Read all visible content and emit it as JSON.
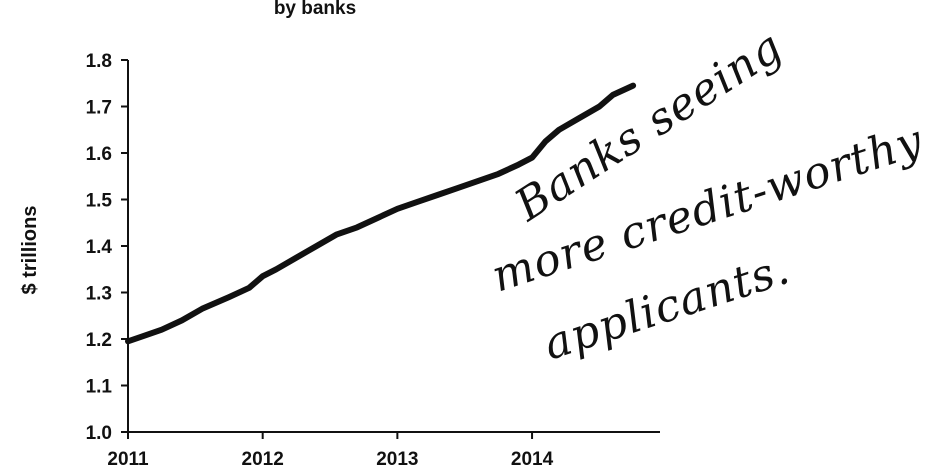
{
  "chart_data": {
    "type": "line",
    "title": "by banks",
    "xlabel": "",
    "ylabel": "$ trillions",
    "ylim": [
      1.0,
      1.8
    ],
    "yticks": [
      "1.0",
      "1.1",
      "1.2",
      "1.3",
      "1.4",
      "1.5",
      "1.6",
      "1.7",
      "1.8"
    ],
    "xticks": [
      "2011",
      "2012",
      "2013",
      "2014"
    ],
    "xlim": [
      2011,
      2014.95
    ],
    "grid": false,
    "series": [
      {
        "x": [
          2011.0,
          2011.1,
          2011.25,
          2011.4,
          2011.55,
          2011.75,
          2011.9,
          2012.0,
          2012.1,
          2012.25,
          2012.4,
          2012.55,
          2012.7,
          2012.85,
          2013.0,
          2013.15,
          2013.3,
          2013.45,
          2013.6,
          2013.75,
          2013.9,
          2014.0,
          2014.1,
          2014.2,
          2014.35,
          2014.5,
          2014.6,
          2014.75
        ],
        "y": [
          1.195,
          1.205,
          1.22,
          1.24,
          1.265,
          1.29,
          1.31,
          1.335,
          1.35,
          1.375,
          1.4,
          1.425,
          1.44,
          1.46,
          1.48,
          1.495,
          1.51,
          1.525,
          1.54,
          1.555,
          1.575,
          1.59,
          1.625,
          1.65,
          1.675,
          1.7,
          1.725,
          1.745
        ]
      }
    ],
    "annotations": [
      "Banks seeing",
      "more credit-worthy",
      "applicants."
    ]
  }
}
